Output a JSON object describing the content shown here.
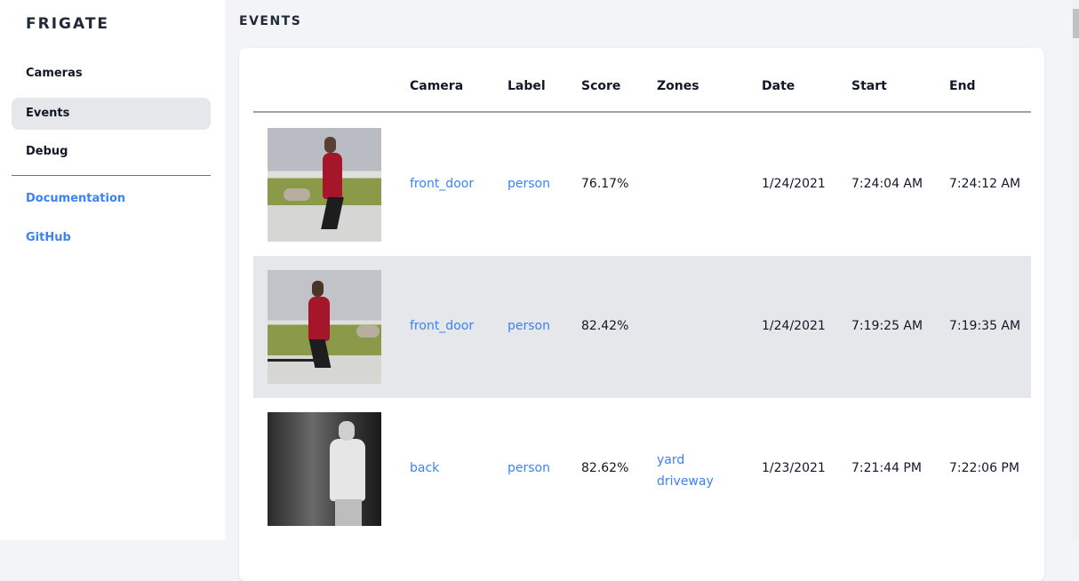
{
  "sidebar": {
    "brand": "FRIGATE",
    "items": [
      {
        "label": "Cameras"
      },
      {
        "label": "Events"
      },
      {
        "label": "Debug"
      }
    ],
    "links": [
      {
        "label": "Documentation"
      },
      {
        "label": "GitHub"
      }
    ]
  },
  "page": {
    "title": "EVENTS"
  },
  "table": {
    "headers": {
      "camera": "Camera",
      "label": "Label",
      "score": "Score",
      "zones": "Zones",
      "date": "Date",
      "start": "Start",
      "end": "End"
    },
    "rows": [
      {
        "camera": "front_door",
        "label": "person",
        "score": "76.17%",
        "zones": [
          "",
          ""
        ],
        "date": "1/24/2021",
        "start": "7:24:04 AM",
        "end": "7:24:12 AM"
      },
      {
        "camera": "front_door",
        "label": "person",
        "score": "82.42%",
        "zones": [
          "",
          ""
        ],
        "date": "1/24/2021",
        "start": "7:19:25 AM",
        "end": "7:19:35 AM"
      },
      {
        "camera": "back",
        "label": "person",
        "score": "82.62%",
        "zones": [
          "yard",
          "driveway"
        ],
        "date": "1/23/2021",
        "start": "7:21:44 PM",
        "end": "7:22:06 PM"
      }
    ]
  },
  "colors": {
    "accent": "#3b82f6",
    "active_bg": "#e5e7eb",
    "main_bg": "#f3f4f6"
  }
}
